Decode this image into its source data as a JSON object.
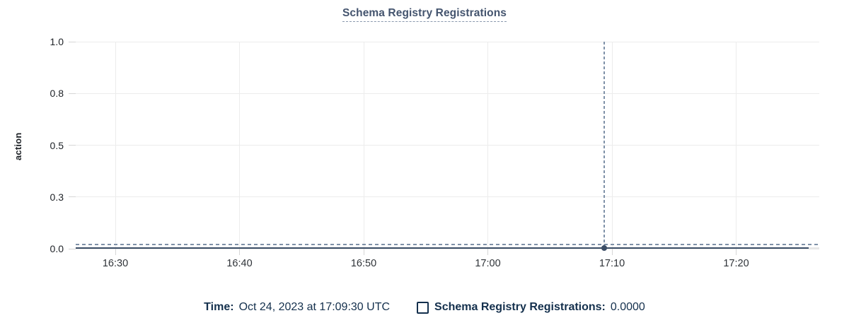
{
  "page": {
    "background": "#ffffff"
  },
  "colors": {
    "title": "#44546e",
    "title_underline": "#8a98ae",
    "axis_text": "#2f3338",
    "grid": "#ececec",
    "tick": "#d6d6d6",
    "series_line": "#3b4d66",
    "crosshair_dashed": "#7f91a8",
    "legend_text": "#14304d"
  },
  "chart_data": {
    "type": "line",
    "title": "Schema Registry Registrations",
    "xlabel": "",
    "ylabel": "action",
    "x_tick_labels": [
      "16:30",
      "16:40",
      "16:50",
      "17:00",
      "17:10",
      "17:20"
    ],
    "y_tick_labels": [
      "1.0",
      "0.8",
      "0.5",
      "0.3",
      "0.0"
    ],
    "y_tick_values": [
      1.0,
      0.75,
      0.5,
      0.25,
      0.0
    ],
    "ylim": [
      0.0,
      1.0
    ],
    "grid": true,
    "legend_position": "bottom",
    "series": [
      {
        "name": "Schema Registry Registrations",
        "color": "#3b4d66",
        "y_constant": 0.0
      }
    ],
    "hover_point": {
      "time": "17:09:30",
      "value": 0.0,
      "nearest_x_tick": "17:10"
    }
  },
  "tooltip": {
    "time_label": "Time:",
    "time_value": "Oct 24, 2023 at 17:09:30 UTC",
    "series_label": "Schema Registry Registrations:",
    "series_value": "0.0000"
  }
}
